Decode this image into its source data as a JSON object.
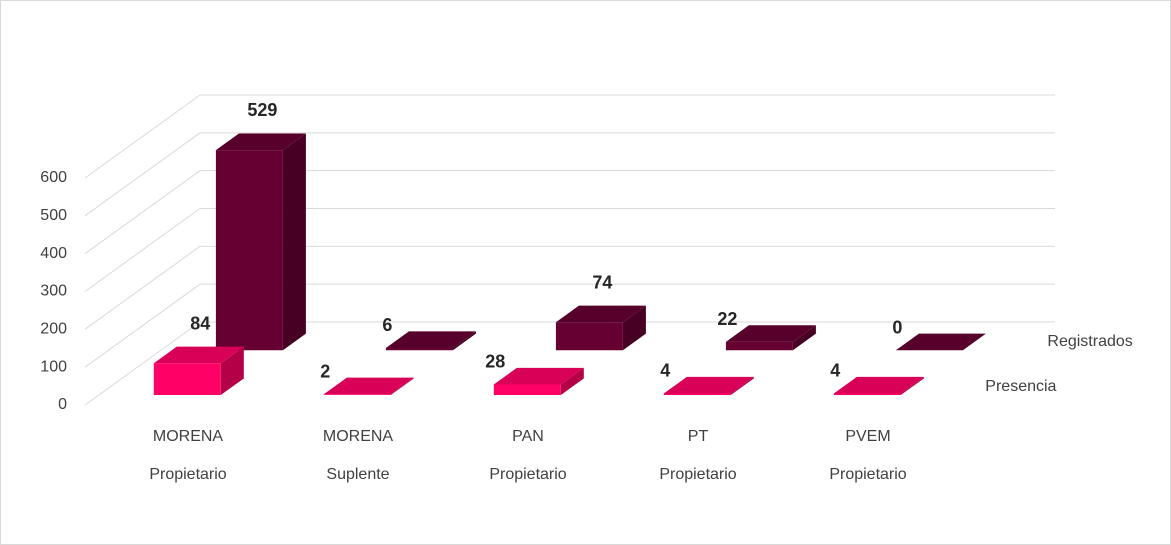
{
  "chart_data": {
    "type": "bar3d",
    "categories": [
      [
        "MORENA",
        "Propietario"
      ],
      [
        "MORENA",
        "Suplente"
      ],
      [
        "PAN",
        "Propietario"
      ],
      [
        "PT",
        "Propietario"
      ],
      [
        "PVEM",
        "Propietario"
      ]
    ],
    "series": [
      {
        "name": "Presencia",
        "color": "#ff0066",
        "values": [
          84,
          2,
          28,
          4,
          4
        ]
      },
      {
        "name": "Registrados",
        "color": "#660033",
        "values": [
          529,
          6,
          74,
          22,
          0
        ]
      }
    ],
    "ylim": [
      0,
      600
    ],
    "yticks": [
      0,
      100,
      200,
      300,
      400,
      500,
      600
    ],
    "grid": true
  }
}
